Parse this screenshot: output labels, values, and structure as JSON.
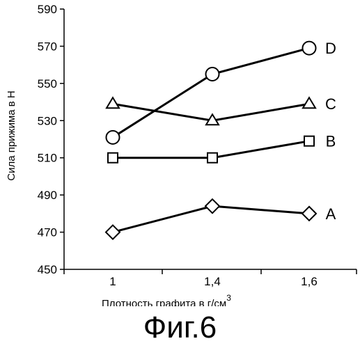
{
  "chart_data": {
    "type": "line",
    "x_tick_labels": [
      "1",
      "1,4",
      "1,6"
    ],
    "y_tick_labels": [
      "450",
      "470",
      "490",
      "510",
      "530",
      "550",
      "570",
      "590"
    ],
    "ylim": [
      450,
      590
    ],
    "xlabel": "Плотность графита в г/см",
    "xlabel_superscript": "3",
    "ylabel": "Сила прижима в Н",
    "grid": false,
    "series": [
      {
        "name": "A",
        "marker": "diamond",
        "values": [
          470,
          484,
          480
        ]
      },
      {
        "name": "B",
        "marker": "square",
        "values": [
          510,
          510,
          519
        ]
      },
      {
        "name": "C",
        "marker": "triangle",
        "values": [
          539,
          530,
          539
        ]
      },
      {
        "name": "D",
        "marker": "circle",
        "values": [
          521,
          555,
          569
        ]
      }
    ]
  },
  "caption": "Фиг.6"
}
